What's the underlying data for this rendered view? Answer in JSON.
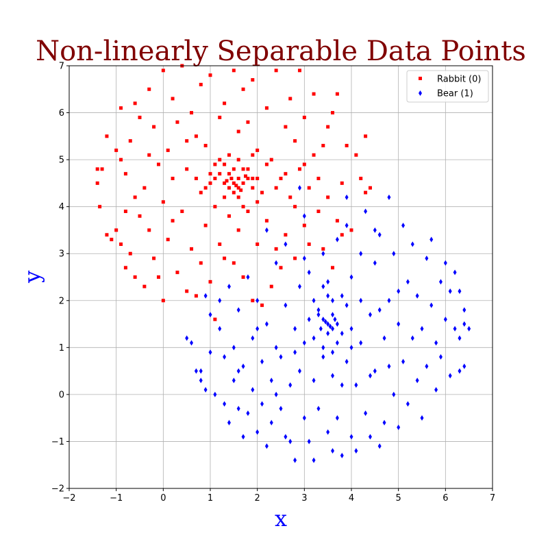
{
  "chart_data": {
    "type": "scatter",
    "title": "Non-linearly Separable Data Points",
    "xlabel": "x",
    "ylabel": "y",
    "xlim": [
      -2,
      7
    ],
    "ylim": [
      -2,
      7
    ],
    "xticks": [
      -2,
      -1,
      0,
      1,
      2,
      3,
      4,
      5,
      6,
      7
    ],
    "yticks": [
      -2,
      -1,
      0,
      1,
      2,
      3,
      4,
      5,
      6,
      7
    ],
    "xtick_labels": [
      "−2",
      "−1",
      "0",
      "1",
      "2",
      "3",
      "4",
      "5",
      "6",
      "7"
    ],
    "ytick_labels": [
      "−2",
      "−1",
      "0",
      "1",
      "2",
      "3",
      "4",
      "5",
      "6",
      "7"
    ],
    "grid": true,
    "legend_position": "top-right",
    "series": [
      {
        "name": "Rabbit (0)",
        "color": "#ff0000",
        "marker": "square",
        "points": [
          [
            1.5,
            4.5
          ],
          [
            1.6,
            4.6
          ],
          [
            1.4,
            4.4
          ],
          [
            1.7,
            4.5
          ],
          [
            1.55,
            4.45
          ],
          [
            1.45,
            4.6
          ],
          [
            1.65,
            4.35
          ],
          [
            1.35,
            4.55
          ],
          [
            1.75,
            4.65
          ],
          [
            1.5,
            4.3
          ],
          [
            1.2,
            4.7
          ],
          [
            1.8,
            4.8
          ],
          [
            1.9,
            4.4
          ],
          [
            1.3,
            4.2
          ],
          [
            1.1,
            4.9
          ],
          [
            2.0,
            4.6
          ],
          [
            1.0,
            4.5
          ],
          [
            1.6,
            5.0
          ],
          [
            1.4,
            5.1
          ],
          [
            1.7,
            4.0
          ],
          [
            -1.4,
            4.8
          ],
          [
            -1.3,
            4.8
          ],
          [
            -1.35,
            4.0
          ],
          [
            -1.4,
            4.5
          ],
          [
            -1.2,
            5.5
          ],
          [
            -1.2,
            3.4
          ],
          [
            -1.1,
            3.3
          ],
          [
            -1.0,
            3.5
          ],
          [
            -1.0,
            5.2
          ],
          [
            -0.9,
            6.1
          ],
          [
            -0.9,
            5.0
          ],
          [
            -0.9,
            3.2
          ],
          [
            -0.8,
            2.7
          ],
          [
            -0.8,
            4.7
          ],
          [
            -0.7,
            5.4
          ],
          [
            -0.7,
            3.0
          ],
          [
            -0.6,
            6.2
          ],
          [
            -0.6,
            4.2
          ],
          [
            -0.5,
            5.9
          ],
          [
            -0.5,
            3.8
          ],
          [
            -0.4,
            2.3
          ],
          [
            -0.4,
            4.4
          ],
          [
            -0.3,
            6.5
          ],
          [
            -0.3,
            3.5
          ],
          [
            -0.2,
            5.7
          ],
          [
            -0.2,
            2.9
          ],
          [
            -0.1,
            4.9
          ],
          [
            -0.1,
            2.5
          ],
          [
            0.0,
            6.9
          ],
          [
            0.0,
            2.0
          ],
          [
            0.0,
            4.1
          ],
          [
            0.1,
            5.2
          ],
          [
            0.1,
            3.3
          ],
          [
            0.2,
            6.3
          ],
          [
            0.2,
            4.6
          ],
          [
            0.3,
            2.6
          ],
          [
            0.3,
            5.8
          ],
          [
            0.4,
            3.9
          ],
          [
            0.4,
            7.0
          ],
          [
            0.5,
            2.2
          ],
          [
            0.5,
            4.8
          ],
          [
            0.6,
            6.0
          ],
          [
            0.6,
            3.1
          ],
          [
            0.7,
            5.5
          ],
          [
            0.7,
            2.1
          ],
          [
            0.8,
            4.3
          ],
          [
            0.8,
            6.6
          ],
          [
            0.9,
            3.6
          ],
          [
            0.9,
            5.3
          ],
          [
            1.0,
            2.4
          ],
          [
            1.0,
            6.8
          ],
          [
            1.1,
            4.0
          ],
          [
            1.1,
            1.6
          ],
          [
            1.2,
            5.9
          ],
          [
            1.2,
            3.2
          ],
          [
            1.3,
            6.2
          ],
          [
            1.3,
            2.9
          ],
          [
            1.4,
            3.8
          ],
          [
            1.5,
            6.9
          ],
          [
            1.5,
            2.8
          ],
          [
            1.6,
            5.6
          ],
          [
            1.6,
            3.5
          ],
          [
            1.7,
            6.5
          ],
          [
            1.7,
            2.5
          ],
          [
            1.8,
            3.9
          ],
          [
            1.8,
            5.8
          ],
          [
            1.9,
            2.0
          ],
          [
            1.9,
            6.7
          ],
          [
            2.0,
            3.2
          ],
          [
            2.0,
            5.2
          ],
          [
            2.1,
            4.3
          ],
          [
            2.1,
            1.9
          ],
          [
            2.2,
            6.1
          ],
          [
            2.2,
            3.7
          ],
          [
            2.3,
            2.3
          ],
          [
            2.3,
            5.0
          ],
          [
            2.4,
            6.9
          ],
          [
            2.4,
            3.1
          ],
          [
            2.5,
            4.6
          ],
          [
            2.5,
            2.7
          ],
          [
            2.6,
            5.7
          ],
          [
            2.6,
            3.4
          ],
          [
            2.7,
            4.2
          ],
          [
            2.7,
            6.3
          ],
          [
            2.8,
            2.9
          ],
          [
            2.8,
            5.4
          ],
          [
            2.9,
            4.8
          ],
          [
            2.9,
            6.9
          ],
          [
            3.0,
            3.6
          ],
          [
            3.0,
            5.9
          ],
          [
            3.1,
            4.4
          ],
          [
            3.1,
            3.2
          ],
          [
            3.2,
            6.4
          ],
          [
            3.2,
            5.1
          ],
          [
            3.3,
            3.9
          ],
          [
            3.3,
            4.6
          ],
          [
            3.4,
            5.3
          ],
          [
            3.4,
            3.1
          ],
          [
            3.5,
            4.2
          ],
          [
            3.5,
            5.7
          ],
          [
            3.6,
            2.7
          ],
          [
            3.6,
            6.0
          ],
          [
            3.7,
            3.7
          ],
          [
            3.7,
            6.4
          ],
          [
            3.8,
            4.5
          ],
          [
            3.8,
            3.4
          ],
          [
            3.9,
            5.3
          ],
          [
            4.0,
            3.5
          ],
          [
            4.1,
            5.1
          ],
          [
            4.2,
            4.6
          ],
          [
            4.3,
            5.5
          ],
          [
            4.3,
            4.3
          ],
          [
            4.4,
            4.4
          ],
          [
            -0.8,
            3.9
          ],
          [
            -0.6,
            2.5
          ],
          [
            -0.3,
            5.1
          ],
          [
            0.2,
            3.7
          ],
          [
            0.5,
            5.4
          ],
          [
            0.8,
            2.8
          ],
          [
            1.0,
            4.7
          ],
          [
            1.2,
            5.0
          ],
          [
            1.3,
            4.9
          ],
          [
            1.4,
            4.7
          ],
          [
            1.5,
            4.8
          ],
          [
            1.6,
            4.2
          ],
          [
            1.7,
            4.8
          ],
          [
            1.8,
            4.6
          ],
          [
            1.9,
            5.1
          ],
          [
            2.0,
            4.1
          ],
          [
            2.2,
            4.9
          ],
          [
            2.4,
            4.4
          ],
          [
            2.6,
            4.7
          ],
          [
            2.8,
            4.0
          ],
          [
            3.0,
            4.9
          ],
          [
            0.7,
            4.6
          ],
          [
            0.9,
            4.4
          ],
          [
            1.1,
            4.6
          ],
          [
            1.3,
            4.5
          ],
          [
            1.6,
            4.4
          ],
          [
            1.9,
            4.6
          ]
        ]
      },
      {
        "name": "Bear (1)",
        "color": "#0000ff",
        "marker": "thin_diamond",
        "points": [
          [
            3.5,
            1.5
          ],
          [
            3.6,
            1.4
          ],
          [
            3.4,
            1.6
          ],
          [
            3.55,
            1.45
          ],
          [
            3.45,
            1.55
          ],
          [
            3.65,
            1.6
          ],
          [
            3.35,
            1.4
          ],
          [
            3.5,
            1.3
          ],
          [
            3.6,
            1.7
          ],
          [
            3.7,
            1.5
          ],
          [
            3.3,
            1.8
          ],
          [
            3.8,
            1.3
          ],
          [
            3.2,
            1.2
          ],
          [
            3.9,
            1.9
          ],
          [
            3.4,
            1.0
          ],
          [
            3.6,
            2.0
          ],
          [
            3.1,
            1.6
          ],
          [
            4.0,
            1.4
          ],
          [
            3.5,
            2.1
          ],
          [
            3.7,
            1.1
          ],
          [
            0.5,
            1.2
          ],
          [
            0.6,
            1.1
          ],
          [
            0.7,
            0.5
          ],
          [
            0.8,
            0.3
          ],
          [
            0.8,
            0.5
          ],
          [
            0.9,
            0.1
          ],
          [
            0.9,
            2.1
          ],
          [
            1.0,
            0.9
          ],
          [
            1.0,
            1.7
          ],
          [
            1.1,
            0.0
          ],
          [
            1.2,
            1.4
          ],
          [
            1.3,
            -0.2
          ],
          [
            1.3,
            0.8
          ],
          [
            1.4,
            -0.6
          ],
          [
            1.4,
            2.3
          ],
          [
            1.5,
            0.3
          ],
          [
            1.5,
            1.0
          ],
          [
            1.6,
            -0.3
          ],
          [
            1.6,
            1.8
          ],
          [
            1.7,
            -0.9
          ],
          [
            1.7,
            0.6
          ],
          [
            1.8,
            2.5
          ],
          [
            1.8,
            -0.4
          ],
          [
            1.9,
            1.2
          ],
          [
            1.9,
            0.1
          ],
          [
            2.0,
            -0.8
          ],
          [
            2.0,
            2.0
          ],
          [
            2.1,
            0.7
          ],
          [
            2.1,
            -0.2
          ],
          [
            2.2,
            -1.1
          ],
          [
            2.2,
            1.5
          ],
          [
            2.3,
            0.3
          ],
          [
            2.3,
            -0.6
          ],
          [
            2.4,
            2.8
          ],
          [
            2.4,
            1.0
          ],
          [
            2.5,
            -0.3
          ],
          [
            2.5,
            0.8
          ],
          [
            2.6,
            -0.9
          ],
          [
            2.6,
            1.9
          ],
          [
            2.7,
            0.2
          ],
          [
            2.7,
            -1.0
          ],
          [
            2.8,
            1.4
          ],
          [
            2.8,
            -1.4
          ],
          [
            2.9,
            0.5
          ],
          [
            2.9,
            2.3
          ],
          [
            3.0,
            -0.5
          ],
          [
            3.0,
            1.1
          ],
          [
            3.1,
            -1.0
          ],
          [
            3.1,
            2.6
          ],
          [
            3.2,
            0.3
          ],
          [
            3.2,
            -1.4
          ],
          [
            3.3,
            1.7
          ],
          [
            3.3,
            -0.3
          ],
          [
            3.4,
            3.0
          ],
          [
            3.4,
            0.8
          ],
          [
            3.5,
            -0.8
          ],
          [
            3.5,
            2.4
          ],
          [
            3.6,
            -1.2
          ],
          [
            3.6,
            0.4
          ],
          [
            3.7,
            3.3
          ],
          [
            3.7,
            -0.5
          ],
          [
            3.8,
            2.1
          ],
          [
            3.8,
            -1.3
          ],
          [
            3.9,
            0.7
          ],
          [
            3.9,
            3.6
          ],
          [
            4.0,
            -0.9
          ],
          [
            4.0,
            2.5
          ],
          [
            4.1,
            0.2
          ],
          [
            4.1,
            -1.2
          ],
          [
            4.2,
            3.0
          ],
          [
            4.2,
            1.1
          ],
          [
            4.3,
            -0.4
          ],
          [
            4.3,
            3.9
          ],
          [
            4.4,
            1.7
          ],
          [
            4.4,
            -0.9
          ],
          [
            4.5,
            0.5
          ],
          [
            4.5,
            2.8
          ],
          [
            4.6,
            -1.1
          ],
          [
            4.6,
            3.4
          ],
          [
            4.7,
            1.2
          ],
          [
            4.7,
            -0.6
          ],
          [
            4.8,
            4.2
          ],
          [
            4.8,
            2.0
          ],
          [
            4.9,
            0.0
          ],
          [
            4.9,
            3.0
          ],
          [
            5.0,
            -0.7
          ],
          [
            5.0,
            1.5
          ],
          [
            5.1,
            3.6
          ],
          [
            5.1,
            0.7
          ],
          [
            5.2,
            2.4
          ],
          [
            5.2,
            -0.2
          ],
          [
            5.3,
            1.2
          ],
          [
            5.3,
            3.2
          ],
          [
            5.4,
            0.3
          ],
          [
            5.4,
            2.1
          ],
          [
            5.5,
            -0.5
          ],
          [
            5.5,
            1.4
          ],
          [
            5.6,
            2.9
          ],
          [
            5.6,
            0.6
          ],
          [
            5.7,
            1.9
          ],
          [
            5.7,
            3.3
          ],
          [
            5.8,
            0.1
          ],
          [
            5.8,
            1.1
          ],
          [
            5.9,
            2.4
          ],
          [
            5.9,
            0.8
          ],
          [
            6.0,
            1.6
          ],
          [
            6.0,
            2.8
          ],
          [
            6.1,
            0.4
          ],
          [
            6.1,
            2.2
          ],
          [
            6.2,
            1.4
          ],
          [
            6.2,
            2.6
          ],
          [
            6.3,
            0.5
          ],
          [
            6.3,
            1.2
          ],
          [
            6.4,
            1.5
          ],
          [
            6.4,
            0.6
          ],
          [
            6.5,
            1.4
          ],
          [
            6.4,
            1.8
          ],
          [
            6.3,
            2.2
          ],
          [
            1.2,
            2.0
          ],
          [
            1.6,
            0.5
          ],
          [
            2.0,
            1.4
          ],
          [
            2.4,
            0.0
          ],
          [
            2.8,
            0.9
          ],
          [
            3.0,
            2.9
          ],
          [
            3.2,
            2.0
          ],
          [
            3.4,
            2.3
          ],
          [
            3.6,
            0.9
          ],
          [
            3.8,
            0.2
          ],
          [
            4.0,
            1.0
          ],
          [
            4.2,
            2.0
          ],
          [
            4.4,
            0.4
          ],
          [
            4.6,
            1.8
          ],
          [
            4.8,
            0.6
          ],
          [
            5.0,
            2.2
          ],
          [
            2.6,
            3.2
          ],
          [
            2.2,
            3.5
          ],
          [
            3.0,
            3.8
          ],
          [
            3.9,
            4.2
          ],
          [
            4.5,
            3.5
          ],
          [
            2.9,
            4.4
          ]
        ]
      }
    ]
  }
}
